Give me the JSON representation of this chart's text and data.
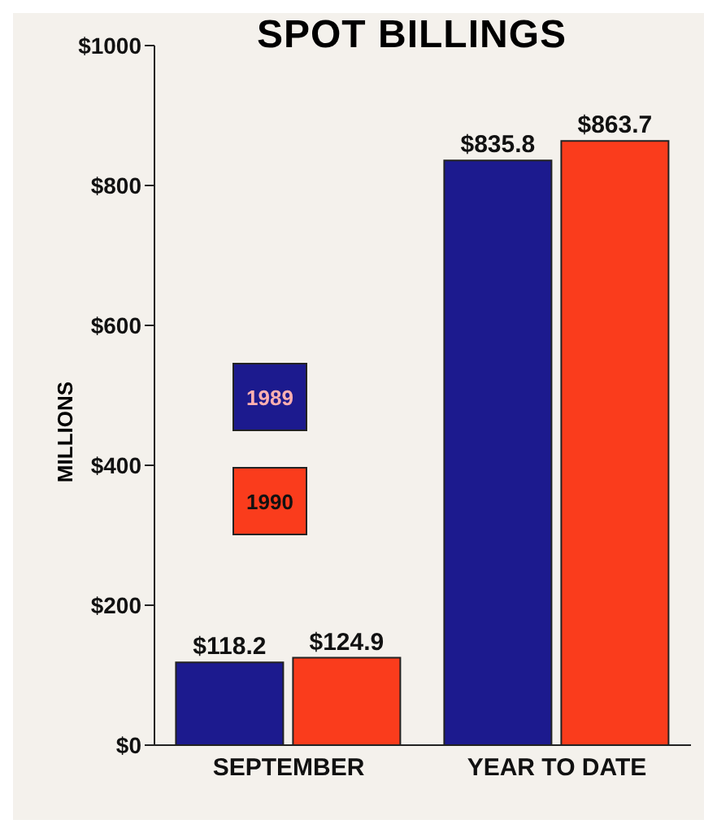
{
  "chart_data": {
    "type": "bar",
    "title": "SPOT BILLINGS",
    "ylabel": "MILLIONS",
    "categories": [
      "SEPTEMBER",
      "YEAR TO DATE"
    ],
    "series": [
      {
        "name": "1989",
        "color": "#1c1a8e",
        "values": [
          118.2,
          835.8
        ],
        "value_labels": [
          "$118.2",
          "$835.8"
        ]
      },
      {
        "name": "1990",
        "color": "#fa3c1c",
        "values": [
          124.9,
          863.7
        ],
        "value_labels": [
          "$124.9",
          "$863.7"
        ]
      }
    ],
    "ylim": [
      0,
      1000
    ],
    "yticks": [
      {
        "value": 0,
        "label": "$0"
      },
      {
        "value": 200,
        "label": "$200"
      },
      {
        "value": 400,
        "label": "$400"
      },
      {
        "value": 600,
        "label": "$600"
      },
      {
        "value": 800,
        "label": "$800"
      },
      {
        "value": 1000,
        "label": "$1000"
      }
    ],
    "legend": "left",
    "grid": false
  }
}
